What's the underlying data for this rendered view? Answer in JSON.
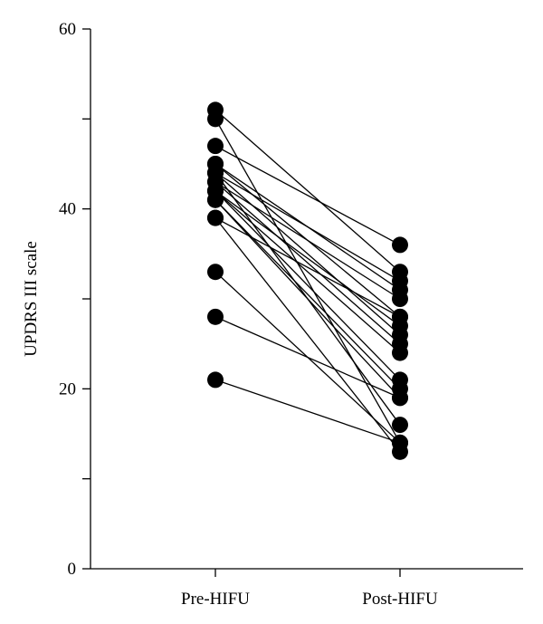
{
  "chart_data": {
    "type": "scatter",
    "subtype": "paired-line",
    "title": "",
    "xlabel": "",
    "ylabel": "UPDRS III scale",
    "categories": [
      "Pre-HIFU",
      "Post-HIFU"
    ],
    "ylim": [
      0,
      60
    ],
    "yticks": [
      0,
      20,
      40,
      60
    ],
    "y_minor_step": 10,
    "grid": false,
    "marker_color": "#000000",
    "line_color": "#000000",
    "pairs": [
      {
        "pre": 51,
        "post": 33
      },
      {
        "pre": 50,
        "post": 14
      },
      {
        "pre": 47,
        "post": 36
      },
      {
        "pre": 45,
        "post": 31
      },
      {
        "pre": 45,
        "post": 28
      },
      {
        "pre": 44,
        "post": 32
      },
      {
        "pre": 44,
        "post": 26
      },
      {
        "pre": 43,
        "post": 30
      },
      {
        "pre": 43,
        "post": 25
      },
      {
        "pre": 42,
        "post": 24
      },
      {
        "pre": 42,
        "post": 21
      },
      {
        "pre": 41,
        "post": 20
      },
      {
        "pre": 41,
        "post": 19
      },
      {
        "pre": 42,
        "post": 27
      },
      {
        "pre": 44,
        "post": 16
      },
      {
        "pre": 39,
        "post": 28
      },
      {
        "pre": 39,
        "post": 13
      },
      {
        "pre": 33,
        "post": 14
      },
      {
        "pre": 28,
        "post": 19
      },
      {
        "pre": 21,
        "post": 14
      }
    ]
  }
}
